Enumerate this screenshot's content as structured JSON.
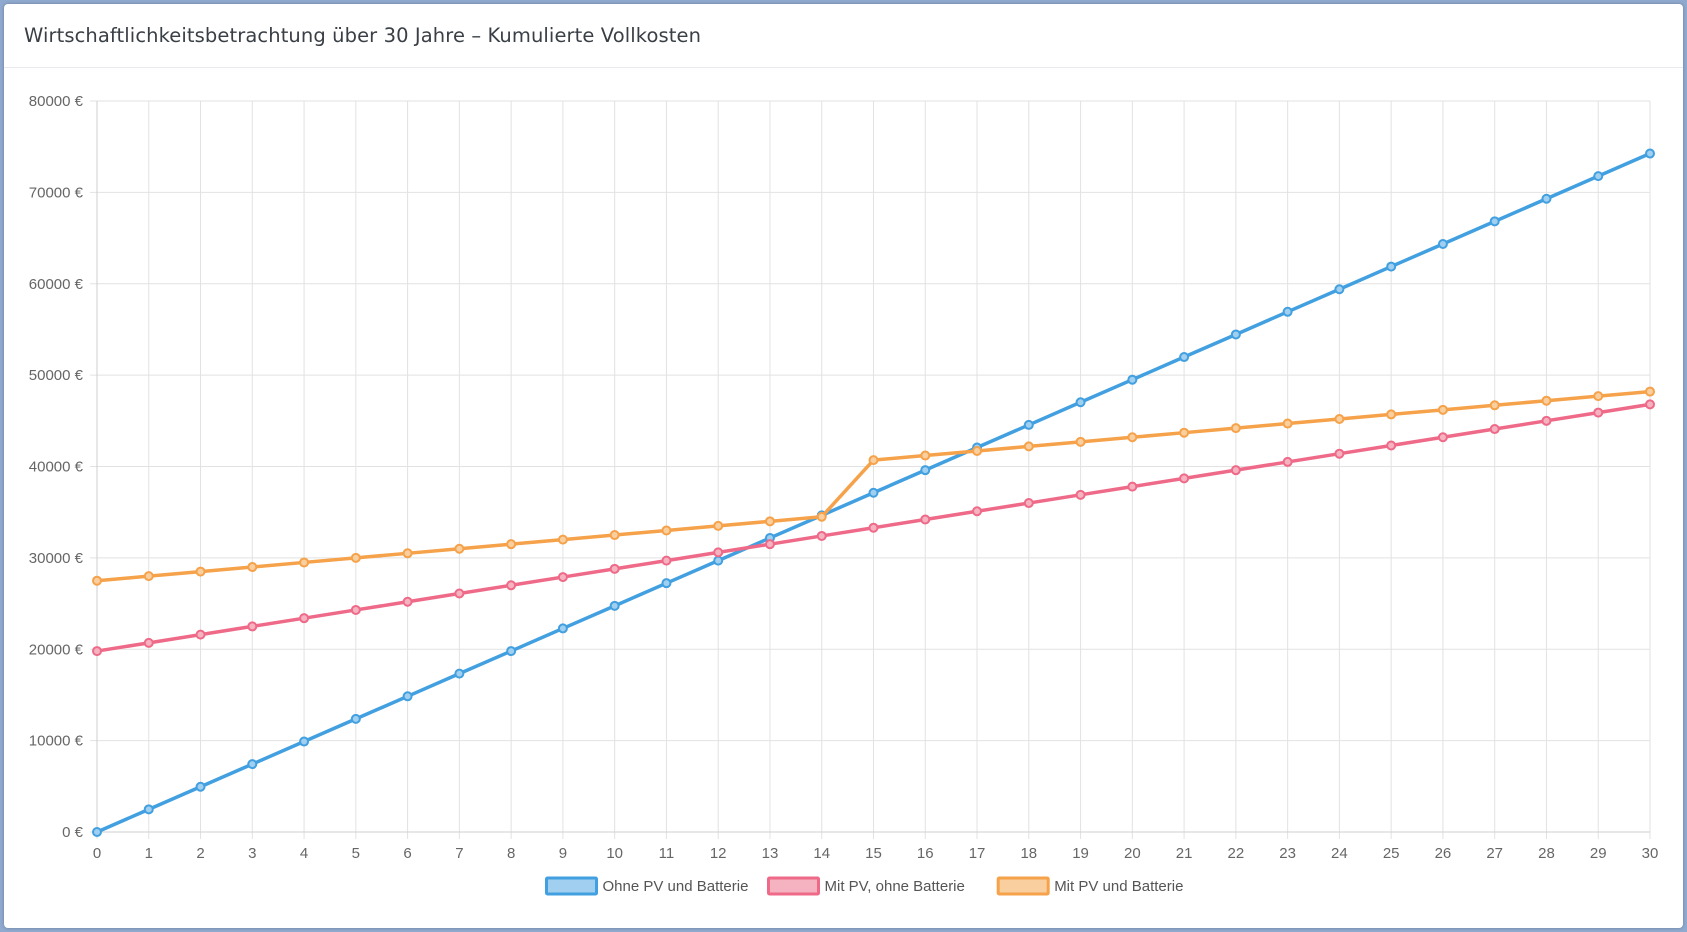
{
  "header": {
    "title": "Wirtschaftlichkeitsbetrachtung über 30 Jahre – Kumulierte Vollkosten"
  },
  "chart_data": {
    "type": "line",
    "title": "Wirtschaftlichkeitsbetrachtung über 30 Jahre – Kumulierte Vollkosten",
    "xlabel": "",
    "ylabel": "",
    "x": [
      0,
      1,
      2,
      3,
      4,
      5,
      6,
      7,
      8,
      9,
      10,
      11,
      12,
      13,
      14,
      15,
      16,
      17,
      18,
      19,
      20,
      21,
      22,
      23,
      24,
      25,
      26,
      27,
      28,
      29,
      30
    ],
    "ylim": [
      0,
      80000
    ],
    "yticks": [
      0,
      10000,
      20000,
      30000,
      40000,
      50000,
      60000,
      70000,
      80000
    ],
    "ytick_suffix": " €",
    "grid": true,
    "legend_position": "bottom",
    "series": [
      {
        "name": "Ohne PV und Batterie",
        "color": "#42a0e0",
        "fill": "#a0cff0",
        "values": [
          0,
          2480,
          4950,
          7430,
          9900,
          12380,
          14850,
          17330,
          19800,
          22280,
          24750,
          27230,
          29700,
          32180,
          34650,
          37130,
          39600,
          42080,
          44550,
          47030,
          49500,
          51980,
          54450,
          56930,
          59400,
          61880,
          64350,
          66830,
          69300,
          71780,
          74250
        ]
      },
      {
        "name": "Mit PV, ohne Batterie",
        "color": "#ee6a88",
        "fill": "#f5b3c1",
        "values": [
          19800,
          20700,
          21600,
          22500,
          23400,
          24300,
          25200,
          26100,
          27000,
          27900,
          28800,
          29700,
          30600,
          31500,
          32400,
          33300,
          34200,
          35100,
          36000,
          36900,
          37800,
          38700,
          39600,
          40500,
          41400,
          42300,
          43200,
          44100,
          45000,
          45900,
          46800
        ]
      },
      {
        "name": "Mit PV und Batterie",
        "color": "#f5a24a",
        "fill": "#f9cf9f",
        "values": [
          27500,
          28000,
          28500,
          29000,
          29500,
          30000,
          30500,
          31000,
          31500,
          32000,
          32500,
          33000,
          33500,
          34000,
          34500,
          40700,
          41200,
          41700,
          42200,
          42700,
          43200,
          43700,
          44200,
          44700,
          45200,
          45700,
          46200,
          46700,
          47200,
          47700,
          48200
        ]
      }
    ]
  }
}
